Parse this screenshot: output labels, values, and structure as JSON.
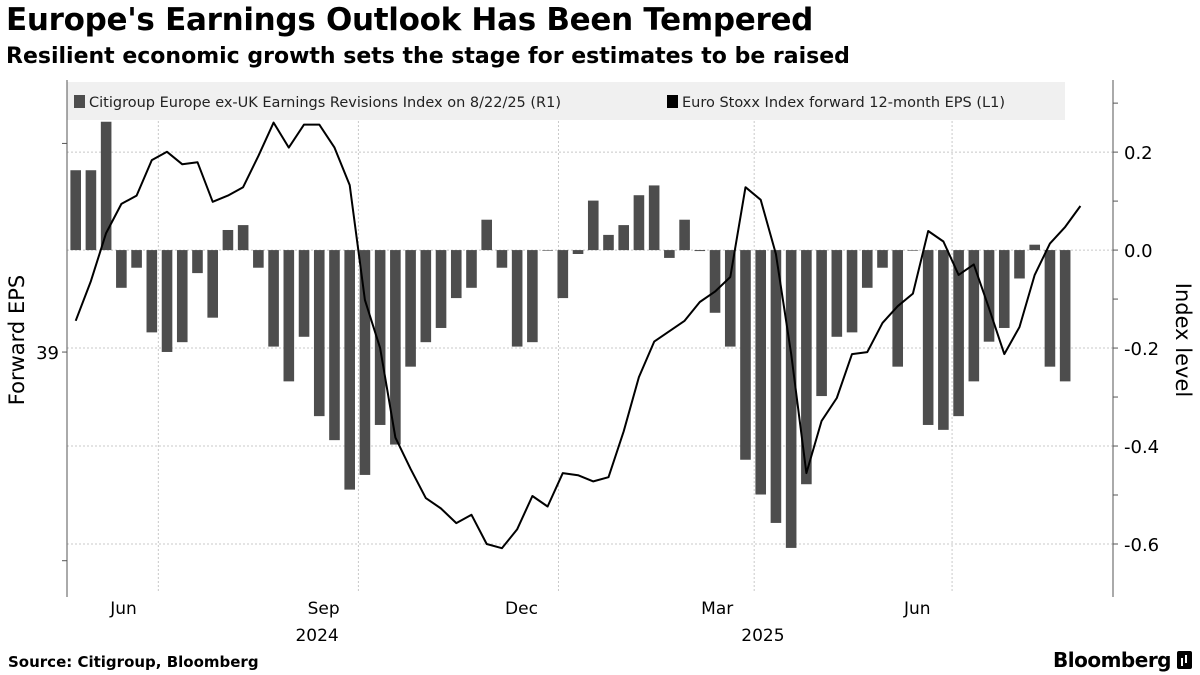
{
  "header": {
    "title": "Europe's Earnings Outlook Has Been Tempered",
    "subtitle": "Resilient economic growth sets the stage for estimates to be raised"
  },
  "footer": {
    "source": "Source: Citigroup, Bloomberg",
    "logo": "Bloomberg"
  },
  "chart_data": {
    "type": "bar+line",
    "title": "Europe's Earnings Outlook Has Been Tempered",
    "subtitle": "Resilient economic growth sets the stage for estimates to be raised",
    "legend_position": "top",
    "grid": true,
    "colors": {
      "bars": "#4d4d4d",
      "line": "#000000",
      "grid": "#c8c8c8",
      "legend_bg": "#f0f0f0"
    },
    "xlim": [
      "2024-05-20",
      "2025-09-13"
    ],
    "x_ticks": [
      {
        "label": "Jun",
        "date": "2024-06-15"
      },
      {
        "label": "Sep",
        "date": "2024-09-15"
      },
      {
        "label": "Dec",
        "date": "2024-12-15"
      },
      {
        "label": "Mar",
        "date": "2025-03-15"
      },
      {
        "label": "Jun",
        "date": "2025-06-15"
      }
    ],
    "x_gridlines": [
      "2024-07-01",
      "2024-10-01",
      "2025-01-01",
      "2025-04-01",
      "2025-07-01"
    ],
    "x_years": [
      {
        "label": "2024",
        "date": "2024-09-12"
      },
      {
        "label": "2025",
        "date": "2025-04-05"
      }
    ],
    "left_axis": {
      "label": "Forward EPS",
      "ylim": [
        37.85,
        40.28
      ],
      "ticks": [
        38,
        39,
        40
      ],
      "tick_labels": [
        "",
        "39",
        ""
      ]
    },
    "right_axis": {
      "label": "Index level",
      "ylim": [
        -0.698,
        0.337
      ],
      "ticks": [
        0.2,
        0.0,
        -0.2,
        -0.4,
        -0.6
      ],
      "tick_labels": [
        "0.2",
        "0.0",
        "-0.2",
        "-0.4",
        "-0.6"
      ]
    },
    "series": [
      {
        "name": "Citigroup Europe ex-UK Earnings Revisions Index on 8/22/25 (R1)",
        "type": "bar",
        "axis": "right",
        "start_date": "2024-05-24",
        "frequency": "weekly",
        "values": [
          0.163,
          0.163,
          0.262,
          -0.077,
          -0.036,
          -0.168,
          -0.208,
          -0.188,
          -0.047,
          -0.138,
          0.041,
          0.051,
          -0.036,
          -0.197,
          -0.268,
          -0.177,
          -0.339,
          -0.388,
          -0.489,
          -0.459,
          -0.357,
          -0.397,
          -0.238,
          -0.188,
          -0.159,
          -0.098,
          -0.077,
          0.062,
          -0.036,
          -0.197,
          -0.188,
          0.0,
          -0.098,
          -0.008,
          0.101,
          0.031,
          0.051,
          0.112,
          0.132,
          -0.016,
          0.062,
          -0.002,
          -0.128,
          -0.197,
          -0.428,
          -0.499,
          -0.557,
          -0.608,
          -0.478,
          -0.298,
          -0.177,
          -0.168,
          -0.077,
          -0.036,
          -0.238,
          0.0,
          -0.357,
          -0.367,
          -0.339,
          -0.268,
          -0.187,
          -0.159,
          -0.058,
          0.011,
          -0.238,
          -0.268
        ]
      },
      {
        "name": "Euro Stoxx Index forward 12-month EPS (L1)",
        "type": "line",
        "axis": "left",
        "start_date": "2024-05-24",
        "frequency": "weekly",
        "values": [
          39.15,
          39.34,
          39.57,
          39.71,
          39.75,
          39.92,
          39.96,
          39.9,
          39.91,
          39.72,
          39.75,
          39.79,
          39.94,
          40.1,
          39.98,
          40.09,
          40.09,
          39.98,
          39.8,
          39.25,
          39.02,
          38.59,
          38.44,
          38.3,
          38.25,
          38.18,
          38.22,
          38.08,
          38.06,
          38.15,
          38.31,
          38.26,
          38.42,
          38.41,
          38.38,
          38.4,
          38.62,
          38.88,
          39.05,
          39.1,
          39.15,
          39.24,
          39.29,
          39.36,
          39.79,
          39.73,
          39.47,
          38.99,
          38.42,
          38.67,
          38.78,
          38.99,
          39.0,
          39.14,
          39.22,
          39.28,
          39.58,
          39.53,
          39.37,
          39.42,
          39.21,
          38.99,
          39.12,
          39.37,
          39.52,
          39.6,
          39.7
        ]
      }
    ]
  }
}
